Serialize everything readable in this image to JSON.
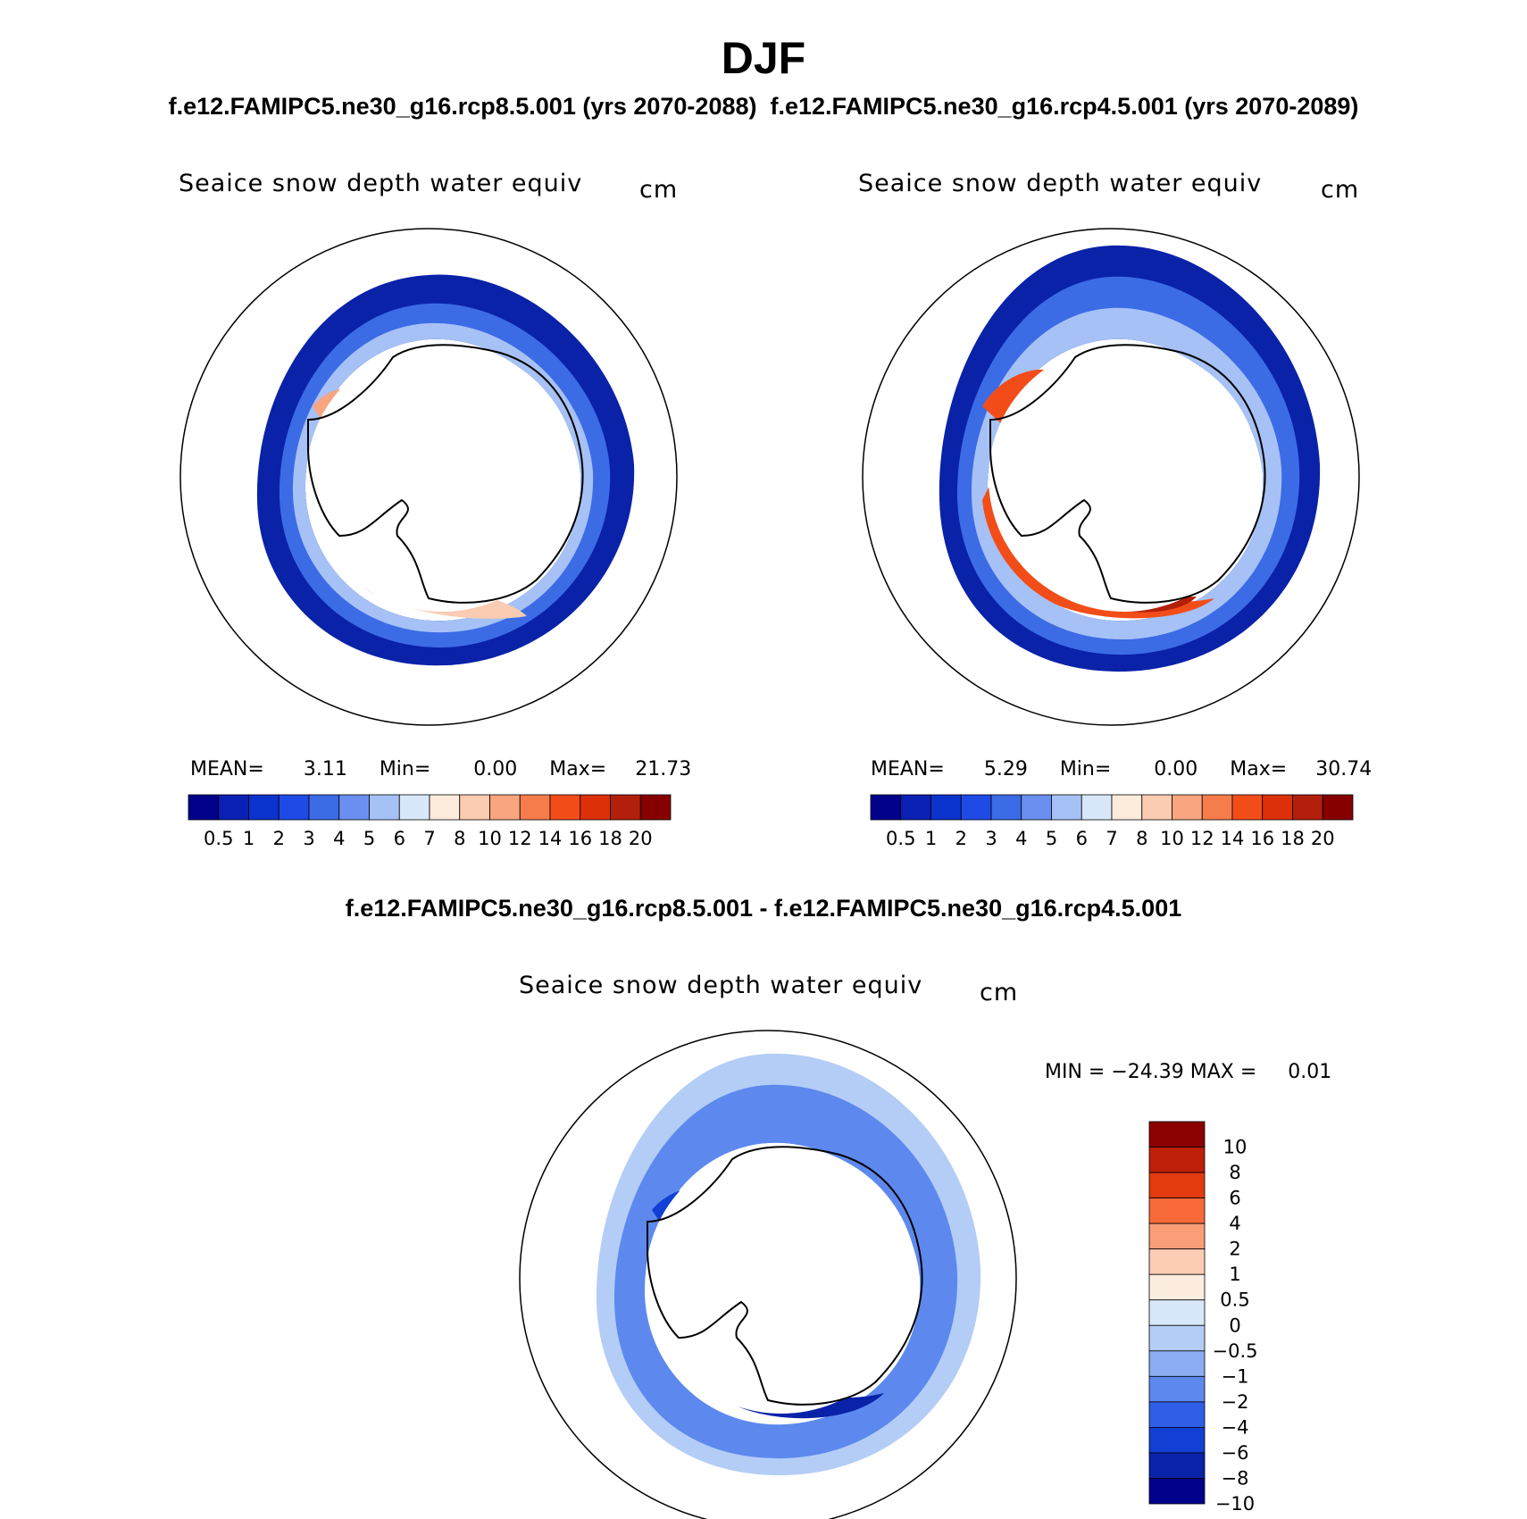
{
  "header": {
    "title": "DJF",
    "subtitle_left": "f.e12.FAMIPC5.ne30_g16.rcp8.5.001 (yrs 2070-2088)",
    "subtitle_right": "f.e12.FAMIPC5.ne30_g16.rcp4.5.001 (yrs 2070-2089)",
    "difference_title": "f.e12.FAMIPC5.ne30_g16.rcp8.5.001 - f.e12.FAMIPC5.ne30_g16.rcp4.5.001"
  },
  "panels": [
    {
      "variable": "Seaice snow depth water equiv",
      "units": "cm",
      "mean_label": "MEAN=",
      "mean": "3.11",
      "min_label": "Min=",
      "min": "0.00",
      "max_label": "Max=",
      "max": "21.73"
    },
    {
      "variable": "Seaice snow depth water equiv",
      "units": "cm",
      "mean_label": "MEAN=",
      "mean": "5.29",
      "min_label": "Min=",
      "min": "0.00",
      "max_label": "Max=",
      "max": "30.74"
    }
  ],
  "difference": {
    "variable": "Seaice snow depth water equiv",
    "units": "cm",
    "minmax_text": "MIN = −24.39 MAX =     0.01"
  },
  "chart_data": [
    {
      "type": "heatmap",
      "projection": "south polar stereographic",
      "title": "Seaice snow depth water equiv",
      "units": "cm",
      "case": "f.e12.FAMIPC5.ne30_g16.rcp8.5.001 (yrs 2070-2088)",
      "mean": 3.11,
      "min": 0.0,
      "max": 21.73,
      "colorbar": {
        "orientation": "horizontal",
        "levels": [
          "0.5",
          "1",
          "2",
          "3",
          "4",
          "5",
          "6",
          "7",
          "8",
          "10",
          "12",
          "14",
          "16",
          "18",
          "20"
        ],
        "colors": [
          "#00008b",
          "#0a1fb3",
          "#0a32cc",
          "#1e4be6",
          "#3c6be6",
          "#6a8ff0",
          "#a6c1f5",
          "#d8e8fa",
          "#fdebdc",
          "#fbcbb2",
          "#f8a580",
          "#f77c4b",
          "#f24d18",
          "#dd3009",
          "#b21f0a",
          "#860000"
        ]
      }
    },
    {
      "type": "heatmap",
      "projection": "south polar stereographic",
      "title": "Seaice snow depth water equiv",
      "units": "cm",
      "case": "f.e12.FAMIPC5.ne30_g16.rcp4.5.001 (yrs 2070-2089)",
      "mean": 5.29,
      "min": 0.0,
      "max": 30.74,
      "colorbar": {
        "orientation": "horizontal",
        "levels": [
          "0.5",
          "1",
          "2",
          "3",
          "4",
          "5",
          "6",
          "7",
          "8",
          "10",
          "12",
          "14",
          "16",
          "18",
          "20"
        ],
        "colors": [
          "#00008b",
          "#0a1fb3",
          "#0a32cc",
          "#1e4be6",
          "#3c6be6",
          "#6a8ff0",
          "#a6c1f5",
          "#d8e8fa",
          "#fdebdc",
          "#fbcbb2",
          "#f8a580",
          "#f77c4b",
          "#f24d18",
          "#dd3009",
          "#b21f0a",
          "#860000"
        ]
      }
    },
    {
      "type": "heatmap",
      "projection": "south polar stereographic",
      "title": "Seaice snow depth water equiv",
      "units": "cm",
      "case": "f.e12.FAMIPC5.ne30_g16.rcp8.5.001 - f.e12.FAMIPC5.ne30_g16.rcp4.5.001",
      "min": -24.39,
      "max": 0.01,
      "colorbar": {
        "orientation": "vertical",
        "levels": [
          "10",
          "8",
          "6",
          "4",
          "2",
          "1",
          "0.5",
          "0",
          "−0.5",
          "−1",
          "−2",
          "−4",
          "−6",
          "−8",
          "−10"
        ],
        "colors": [
          "#8b0000",
          "#bf2008",
          "#e33a0e",
          "#f86a3a",
          "#fa9e77",
          "#fcccb4",
          "#fdede0",
          "#d8e8fa",
          "#b4cdf6",
          "#8cadf3",
          "#5d89ee",
          "#2e5fe6",
          "#1240d4",
          "#0a22a8",
          "#00008b"
        ]
      }
    }
  ]
}
